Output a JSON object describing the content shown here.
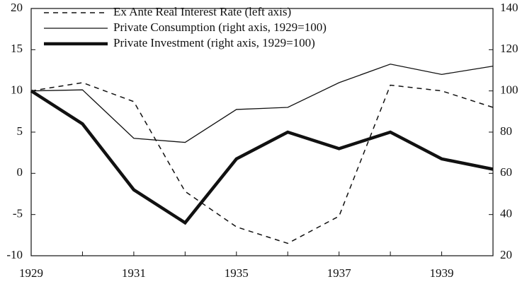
{
  "chart_data": {
    "type": "line",
    "categories": [
      "1929",
      null,
      "1931",
      null,
      "1935",
      null,
      "1937",
      null,
      "1939",
      null
    ],
    "series": [
      {
        "name": "Ex Ante Real Interest Rate (left axis)",
        "color": "#111111",
        "dash": true,
        "width": 1.5,
        "values": [
          10,
          11,
          8.7,
          -2.2,
          -6.5,
          -8.5,
          -5.2,
          10.7,
          10,
          8
        ]
      },
      {
        "name": "Private Consumption (right axis, 1929=100)",
        "color": "#111111",
        "width": 1.3,
        "axis": "y2",
        "values": [
          100,
          100.5,
          77,
          75,
          91,
          92,
          104,
          113,
          108,
          112
        ]
      },
      {
        "name": "Private Investment (right axis, 1929=100)",
        "color": "#111111",
        "width": 4.5,
        "axis": "y2",
        "values": [
          100,
          84,
          52,
          36,
          67,
          80,
          72,
          80,
          67,
          62
        ]
      }
    ],
    "ylim": [
      -10,
      20
    ],
    "yticks": [
      -10,
      -5,
      0,
      5,
      10,
      15,
      20
    ],
    "y2lim": [
      20,
      140
    ],
    "y2ticks": [
      20,
      40,
      60,
      80,
      100,
      120,
      140
    ]
  }
}
